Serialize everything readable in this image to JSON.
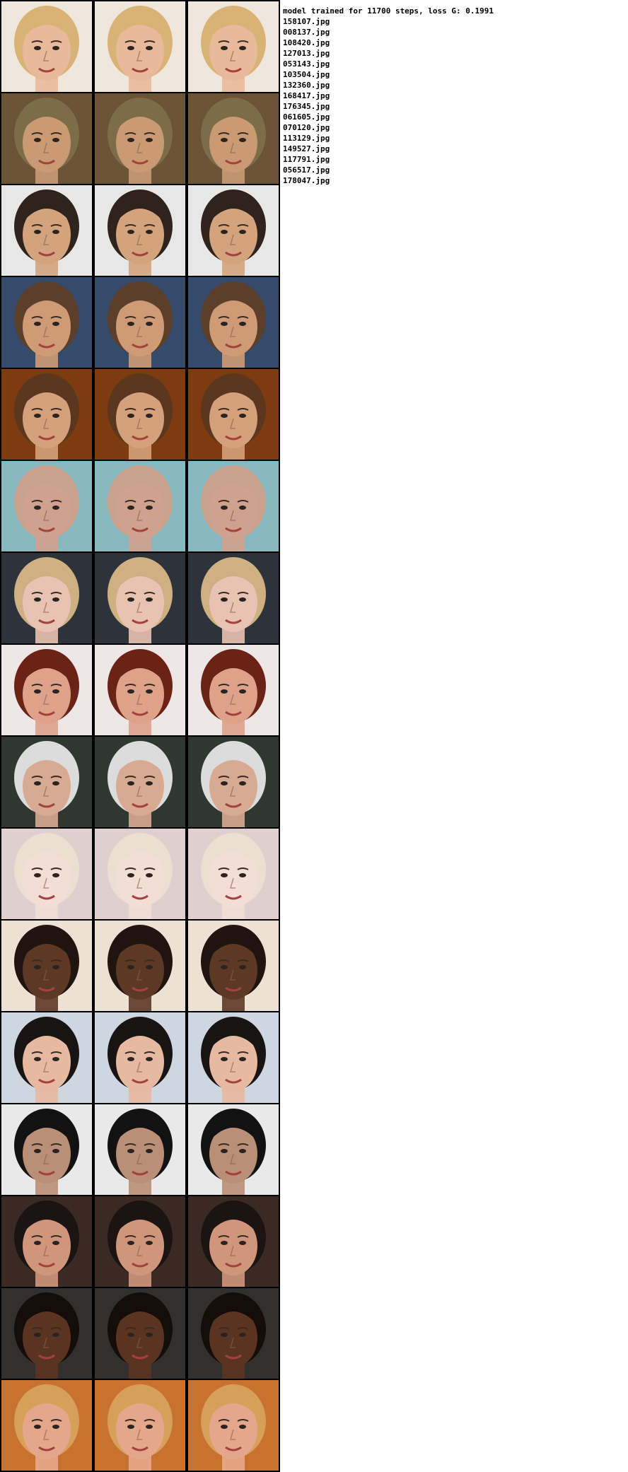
{
  "header": {
    "caption": "model trained for 11700 steps, loss G: 0.1991"
  },
  "filenames": [
    "158107.jpg",
    "008137.jpg",
    "108420.jpg",
    "127013.jpg",
    "053143.jpg",
    "103504.jpg",
    "132360.jpg",
    "168417.jpg",
    "176345.jpg",
    "061605.jpg",
    "070120.jpg",
    "113129.jpg",
    "149527.jpg",
    "117791.jpg",
    "056517.jpg",
    "178047.jpg"
  ],
  "rows": [
    {
      "bg": "#f0e7dc",
      "skin": "#e8b99a",
      "hair": "#d9b276"
    },
    {
      "bg": "#6b5436",
      "skin": "#c99a73",
      "hair": "#7d6c48"
    },
    {
      "bg": "#e7e7e7",
      "skin": "#d3a37e",
      "hair": "#2e241d"
    },
    {
      "bg": "#364a6a",
      "skin": "#cf9b76",
      "hair": "#5c3f2a"
    },
    {
      "bg": "#7e3b10",
      "skin": "#d5a17c",
      "hair": "#5b3720"
    },
    {
      "bg": "#87b8bf",
      "skin": "#d0a18f",
      "hair": "#c8a28d"
    },
    {
      "bg": "#2d333a",
      "skin": "#e8c2b3",
      "hair": "#cfb083"
    },
    {
      "bg": "#efe7e7",
      "skin": "#dea18a",
      "hair": "#6b2316"
    },
    {
      "bg": "#2f3830",
      "skin": "#d8aa92",
      "hair": "#dcdcdc"
    },
    {
      "bg": "#dfd0cf",
      "skin": "#f3ddd4",
      "hair": "#eadfd0"
    },
    {
      "bg": "#ede1d4",
      "skin": "#5d3925",
      "hair": "#1f140f"
    },
    {
      "bg": "#ced6e0",
      "skin": "#e7b9a0",
      "hair": "#191414"
    },
    {
      "bg": "#e9e9e9",
      "skin": "#ba8f77",
      "hair": "#121212"
    },
    {
      "bg": "#3b2a24",
      "skin": "#cf967b",
      "hair": "#1b1412"
    },
    {
      "bg": "#32302f",
      "skin": "#5b3421",
      "hair": "#140d0a"
    },
    {
      "bg": "#c9712f",
      "skin": "#e5a78c",
      "hair": "#d6a05b"
    }
  ]
}
